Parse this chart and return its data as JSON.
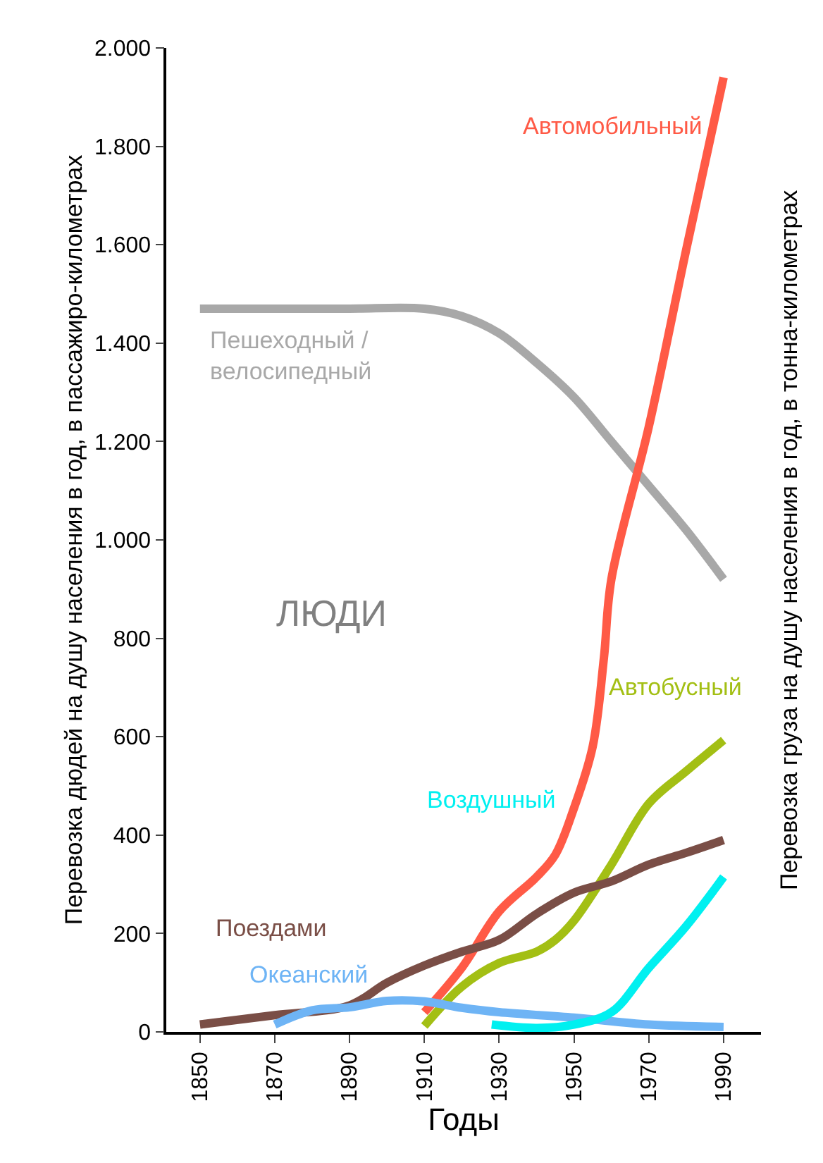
{
  "chart_data": {
    "type": "line",
    "xlabel": "Годы",
    "ylabel": "Перевозка дюдей на душу населения в год, в пассажиро-километрах",
    "y2label": "Перевозка груза на душу населения в год, в тонна-километрах",
    "annotations": [
      "ЛЮДИ"
    ],
    "xlim": [
      1841,
      2000
    ],
    "xticks": [
      1850,
      1870,
      1890,
      1910,
      1930,
      1950,
      1970,
      1990
    ],
    "ylim": [
      0,
      2000
    ],
    "yticks": [
      {
        "value": 0,
        "label": "0"
      },
      {
        "value": 200,
        "label": "200"
      },
      {
        "value": 400,
        "label": "400"
      },
      {
        "value": 600,
        "label": "600"
      },
      {
        "value": 800,
        "label": "800"
      },
      {
        "value": 1000,
        "label": "1.000"
      },
      {
        "value": 1200,
        "label": "1.200"
      },
      {
        "value": 1400,
        "label": "1.400"
      },
      {
        "value": 1600,
        "label": "1.600"
      },
      {
        "value": 1800,
        "label": "1.800"
      },
      {
        "value": 2000,
        "label": "2.000"
      }
    ],
    "legend": false,
    "marker": "none",
    "line_style": "solid",
    "series": [
      {
        "name": "Пешеходный / велосипедный",
        "color": "#a8a8a8",
        "x": [
          1850,
          1870,
          1890,
          1910,
          1920,
          1930,
          1940,
          1950,
          1960,
          1970,
          1980,
          1990
        ],
        "values": [
          1470,
          1470,
          1470,
          1470,
          1455,
          1420,
          1360,
          1290,
          1200,
          1110,
          1020,
          920
        ]
      },
      {
        "name": "Автомобильный",
        "color": "#ff5a46",
        "x": [
          1910,
          1920,
          1930,
          1940,
          1945,
          1950,
          1955,
          1958,
          1960,
          1970,
          1980,
          1990
        ],
        "values": [
          40,
          130,
          245,
          315,
          360,
          455,
          580,
          760,
          920,
          1230,
          1590,
          1940
        ]
      },
      {
        "name": "Автобусный",
        "color": "#a3bf14",
        "x": [
          1910,
          1920,
          1930,
          1940,
          1945,
          1950,
          1960,
          1970,
          1980,
          1990
        ],
        "values": [
          12,
          92,
          140,
          163,
          187,
          226,
          340,
          464,
          530,
          593
        ]
      },
      {
        "name": "Поездами",
        "color": "#7a4e46",
        "x": [
          1850,
          1870,
          1890,
          1900,
          1910,
          1920,
          1930,
          1940,
          1950,
          1960,
          1970,
          1980,
          1990
        ],
        "values": [
          15,
          34,
          54,
          100,
          135,
          163,
          187,
          240,
          283,
          306,
          340,
          364,
          390
        ]
      },
      {
        "name": "Океанский",
        "color": "#6eb4f5",
        "x": [
          1870,
          1880,
          1890,
          1900,
          1910,
          1920,
          1930,
          1950,
          1970,
          1990
        ],
        "values": [
          15,
          44,
          50,
          63,
          62,
          49,
          40,
          29,
          15,
          10
        ]
      },
      {
        "name": "Воздушный",
        "color": "#00f0f0",
        "x": [
          1928,
          1940,
          1950,
          1960,
          1970,
          1980,
          1990
        ],
        "values": [
          15,
          8,
          15,
          40,
          130,
          215,
          315
        ]
      }
    ]
  }
}
